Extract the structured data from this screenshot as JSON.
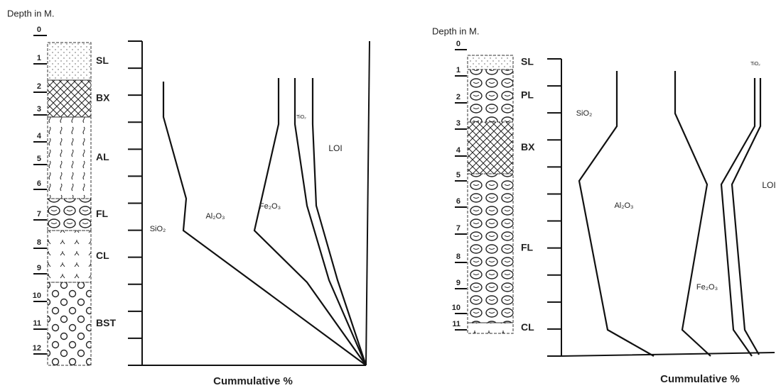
{
  "panels": [
    {
      "depth_label": "Depth in M.",
      "depths": [
        0,
        1,
        2,
        3,
        4,
        5,
        6,
        7,
        8,
        9,
        10,
        11,
        12
      ],
      "layers": [
        "SL",
        "BX",
        "AL",
        "FL",
        "CL",
        "BST"
      ],
      "curve_labels": [
        "SiO₂",
        "Al₂O₃",
        "Fe₂O₃",
        "TiO₂",
        "LOI"
      ],
      "x_label": "Cummulative %"
    },
    {
      "depth_label": "Depth in M.",
      "depths": [
        0,
        1,
        2,
        3,
        4,
        5,
        6,
        7,
        8,
        9,
        10,
        11
      ],
      "layers": [
        "SL",
        "PL",
        "BX",
        "FL",
        "CL"
      ],
      "curve_labels": [
        "SiO₂",
        "Al₂O₃",
        "Fe₂O₃",
        "TiO₂",
        "LOI"
      ],
      "x_label": "Cummulative %"
    }
  ]
}
